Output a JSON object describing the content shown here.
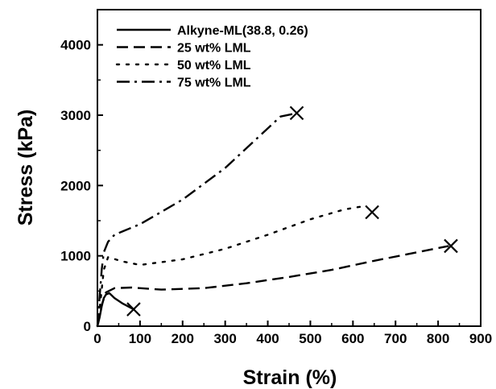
{
  "chart_data": {
    "type": "line",
    "xlabel": "Strain (%)",
    "ylabel": "Stress (kPa)",
    "xlim": [
      0,
      900
    ],
    "ylim": [
      0,
      4500
    ],
    "x_ticks": [
      0,
      100,
      200,
      300,
      400,
      500,
      600,
      700,
      800,
      900
    ],
    "y_ticks": [
      0,
      1000,
      2000,
      3000,
      4000
    ],
    "legend_position": "top-left",
    "grid": false,
    "series": [
      {
        "name": "Alkyne-ML(38.8, 0.26)",
        "dash": "solid",
        "points": [
          [
            0,
            0
          ],
          [
            5,
            120
          ],
          [
            10,
            280
          ],
          [
            15,
            400
          ],
          [
            20,
            450
          ],
          [
            28,
            470
          ],
          [
            40,
            400
          ],
          [
            60,
            320
          ],
          [
            85,
            240
          ]
        ],
        "break_marker": [
          85,
          240
        ]
      },
      {
        "name": "25 wt% LML",
        "dash": "dashed",
        "points": [
          [
            0,
            0
          ],
          [
            10,
            300
          ],
          [
            20,
            480
          ],
          [
            40,
            540
          ],
          [
            80,
            550
          ],
          [
            150,
            520
          ],
          [
            250,
            540
          ],
          [
            350,
            610
          ],
          [
            450,
            700
          ],
          [
            550,
            800
          ],
          [
            650,
            930
          ],
          [
            750,
            1050
          ],
          [
            825,
            1140
          ]
        ],
        "break_marker": [
          830,
          1140
        ]
      },
      {
        "name": "50 wt% LML",
        "dash": "dotted",
        "points": [
          [
            0,
            0
          ],
          [
            8,
            400
          ],
          [
            15,
            800
          ],
          [
            25,
            980
          ],
          [
            60,
            920
          ],
          [
            100,
            870
          ],
          [
            200,
            950
          ],
          [
            300,
            1100
          ],
          [
            400,
            1300
          ],
          [
            500,
            1520
          ],
          [
            580,
            1660
          ],
          [
            620,
            1700
          ]
        ],
        "break_marker": [
          645,
          1620
        ]
      },
      {
        "name": "75 wt% LML",
        "dash": "dashdot",
        "points": [
          [
            0,
            0
          ],
          [
            5,
            400
          ],
          [
            10,
            800
          ],
          [
            15,
            1050
          ],
          [
            25,
            1200
          ],
          [
            40,
            1300
          ],
          [
            60,
            1350
          ],
          [
            100,
            1450
          ],
          [
            200,
            1800
          ],
          [
            300,
            2250
          ],
          [
            380,
            2700
          ],
          [
            430,
            2980
          ],
          [
            470,
            3030
          ]
        ],
        "break_marker": [
          468,
          3030
        ]
      }
    ]
  }
}
